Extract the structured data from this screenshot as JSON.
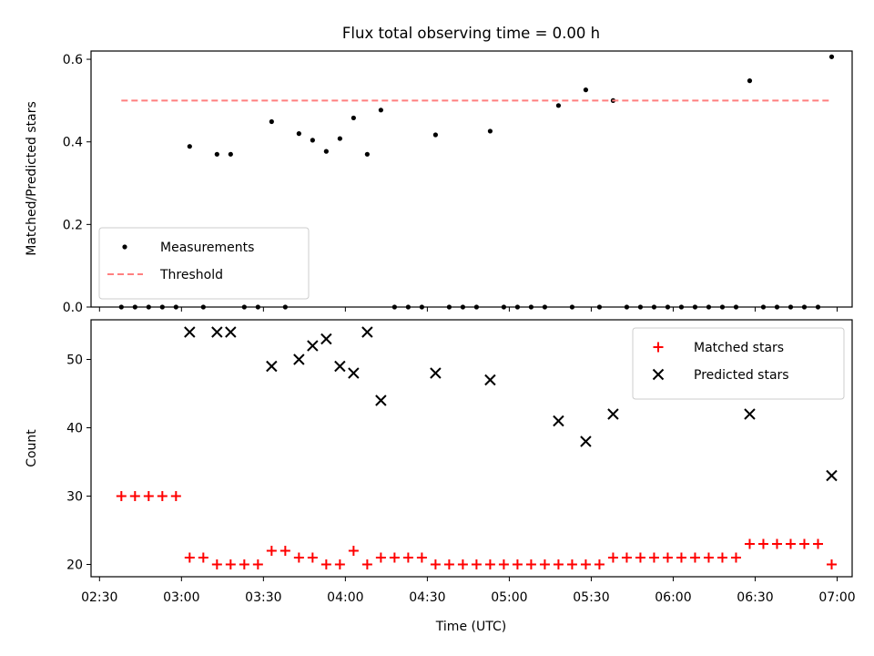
{
  "chart_data": {
    "title": "Flux total observing time = 0.00 h",
    "xlabel": "Time (UTC)",
    "x_ticks": [
      "02:30",
      "03:00",
      "03:30",
      "04:00",
      "04:30",
      "05:00",
      "05:30",
      "06:00",
      "06:30",
      "07:00"
    ],
    "panels": [
      {
        "type": "scatter",
        "ylabel": "Matched/Predicted stars",
        "ylim": [
          0,
          0.62
        ],
        "y_ticks": [
          "0.0",
          "0.2",
          "0.4",
          "0.6"
        ],
        "legend_position": "lower-left",
        "series": [
          {
            "name": "Measurements",
            "marker": "dot",
            "color": "#000000",
            "points": [
              {
                "x": "02:38",
                "y": 0.0
              },
              {
                "x": "02:43",
                "y": 0.0
              },
              {
                "x": "02:48",
                "y": 0.0
              },
              {
                "x": "02:53",
                "y": 0.0
              },
              {
                "x": "02:58",
                "y": 0.0
              },
              {
                "x": "03:03",
                "y": 0.389
              },
              {
                "x": "03:08",
                "y": 0.0
              },
              {
                "x": "03:13",
                "y": 0.37
              },
              {
                "x": "03:18",
                "y": 0.37
              },
              {
                "x": "03:23",
                "y": 0.0
              },
              {
                "x": "03:28",
                "y": 0.0
              },
              {
                "x": "03:33",
                "y": 0.449
              },
              {
                "x": "03:38",
                "y": 0.0
              },
              {
                "x": "03:43",
                "y": 0.42
              },
              {
                "x": "03:48",
                "y": 0.404
              },
              {
                "x": "03:53",
                "y": 0.377
              },
              {
                "x": "03:58",
                "y": 0.408
              },
              {
                "x": "04:03",
                "y": 0.458
              },
              {
                "x": "04:08",
                "y": 0.37
              },
              {
                "x": "04:13",
                "y": 0.477
              },
              {
                "x": "04:18",
                "y": 0.0
              },
              {
                "x": "04:23",
                "y": 0.0
              },
              {
                "x": "04:28",
                "y": 0.0
              },
              {
                "x": "04:33",
                "y": 0.417
              },
              {
                "x": "04:38",
                "y": 0.0
              },
              {
                "x": "04:43",
                "y": 0.0
              },
              {
                "x": "04:48",
                "y": 0.0
              },
              {
                "x": "04:53",
                "y": 0.426
              },
              {
                "x": "04:58",
                "y": 0.0
              },
              {
                "x": "05:03",
                "y": 0.0
              },
              {
                "x": "05:08",
                "y": 0.0
              },
              {
                "x": "05:13",
                "y": 0.0
              },
              {
                "x": "05:18",
                "y": 0.488
              },
              {
                "x": "05:23",
                "y": 0.0
              },
              {
                "x": "05:28",
                "y": 0.526
              },
              {
                "x": "05:33",
                "y": 0.0
              },
              {
                "x": "05:38",
                "y": 0.5
              },
              {
                "x": "05:43",
                "y": 0.0
              },
              {
                "x": "05:48",
                "y": 0.0
              },
              {
                "x": "05:53",
                "y": 0.0
              },
              {
                "x": "05:58",
                "y": 0.0
              },
              {
                "x": "06:03",
                "y": 0.0
              },
              {
                "x": "06:08",
                "y": 0.0
              },
              {
                "x": "06:13",
                "y": 0.0
              },
              {
                "x": "06:18",
                "y": 0.0
              },
              {
                "x": "06:23",
                "y": 0.0
              },
              {
                "x": "06:28",
                "y": 0.548
              },
              {
                "x": "06:33",
                "y": 0.0
              },
              {
                "x": "06:38",
                "y": 0.0
              },
              {
                "x": "06:43",
                "y": 0.0
              },
              {
                "x": "06:48",
                "y": 0.0
              },
              {
                "x": "06:53",
                "y": 0.0
              },
              {
                "x": "06:58",
                "y": 0.606
              }
            ]
          },
          {
            "name": "Threshold",
            "marker": "dashed-line",
            "color": "#ff7f7f",
            "points": [
              {
                "x": "02:38",
                "y": 0.5
              },
              {
                "x": "06:58",
                "y": 0.5
              }
            ]
          }
        ]
      },
      {
        "type": "scatter",
        "ylabel": "Count",
        "ylim": [
          18.2,
          55.8
        ],
        "y_ticks": [
          "20",
          "30",
          "40",
          "50"
        ],
        "legend_position": "top-right",
        "series": [
          {
            "name": "Matched stars",
            "marker": "plus",
            "color": "#ff0000",
            "points": [
              {
                "x": "02:38",
                "y": 30
              },
              {
                "x": "02:43",
                "y": 30
              },
              {
                "x": "02:48",
                "y": 30
              },
              {
                "x": "02:53",
                "y": 30
              },
              {
                "x": "02:58",
                "y": 30
              },
              {
                "x": "03:03",
                "y": 21
              },
              {
                "x": "03:08",
                "y": 21
              },
              {
                "x": "03:13",
                "y": 20
              },
              {
                "x": "03:18",
                "y": 20
              },
              {
                "x": "03:23",
                "y": 20
              },
              {
                "x": "03:28",
                "y": 20
              },
              {
                "x": "03:33",
                "y": 22
              },
              {
                "x": "03:38",
                "y": 22
              },
              {
                "x": "03:43",
                "y": 21
              },
              {
                "x": "03:48",
                "y": 21
              },
              {
                "x": "03:53",
                "y": 20
              },
              {
                "x": "03:58",
                "y": 20
              },
              {
                "x": "04:03",
                "y": 22
              },
              {
                "x": "04:08",
                "y": 20
              },
              {
                "x": "04:13",
                "y": 21
              },
              {
                "x": "04:18",
                "y": 21
              },
              {
                "x": "04:23",
                "y": 21
              },
              {
                "x": "04:28",
                "y": 21
              },
              {
                "x": "04:33",
                "y": 20
              },
              {
                "x": "04:38",
                "y": 20
              },
              {
                "x": "04:43",
                "y": 20
              },
              {
                "x": "04:48",
                "y": 20
              },
              {
                "x": "04:53",
                "y": 20
              },
              {
                "x": "04:58",
                "y": 20
              },
              {
                "x": "05:03",
                "y": 20
              },
              {
                "x": "05:08",
                "y": 20
              },
              {
                "x": "05:13",
                "y": 20
              },
              {
                "x": "05:18",
                "y": 20
              },
              {
                "x": "05:23",
                "y": 20
              },
              {
                "x": "05:28",
                "y": 20
              },
              {
                "x": "05:33",
                "y": 20
              },
              {
                "x": "05:38",
                "y": 21
              },
              {
                "x": "05:43",
                "y": 21
              },
              {
                "x": "05:48",
                "y": 21
              },
              {
                "x": "05:53",
                "y": 21
              },
              {
                "x": "05:58",
                "y": 21
              },
              {
                "x": "06:03",
                "y": 21
              },
              {
                "x": "06:08",
                "y": 21
              },
              {
                "x": "06:13",
                "y": 21
              },
              {
                "x": "06:18",
                "y": 21
              },
              {
                "x": "06:23",
                "y": 21
              },
              {
                "x": "06:28",
                "y": 23
              },
              {
                "x": "06:33",
                "y": 23
              },
              {
                "x": "06:38",
                "y": 23
              },
              {
                "x": "06:43",
                "y": 23
              },
              {
                "x": "06:48",
                "y": 23
              },
              {
                "x": "06:53",
                "y": 23
              },
              {
                "x": "06:58",
                "y": 20
              }
            ]
          },
          {
            "name": "Predicted stars",
            "marker": "x",
            "color": "#000000",
            "points": [
              {
                "x": "03:03",
                "y": 54
              },
              {
                "x": "03:13",
                "y": 54
              },
              {
                "x": "03:18",
                "y": 54
              },
              {
                "x": "03:33",
                "y": 49
              },
              {
                "x": "03:43",
                "y": 50
              },
              {
                "x": "03:48",
                "y": 52
              },
              {
                "x": "03:53",
                "y": 53
              },
              {
                "x": "03:58",
                "y": 49
              },
              {
                "x": "04:03",
                "y": 48
              },
              {
                "x": "04:08",
                "y": 54
              },
              {
                "x": "04:13",
                "y": 44
              },
              {
                "x": "04:33",
                "y": 48
              },
              {
                "x": "04:53",
                "y": 47
              },
              {
                "x": "05:18",
                "y": 41
              },
              {
                "x": "05:28",
                "y": 38
              },
              {
                "x": "05:38",
                "y": 42
              },
              {
                "x": "06:28",
                "y": 42
              },
              {
                "x": "06:58",
                "y": 33
              }
            ]
          }
        ]
      }
    ]
  }
}
